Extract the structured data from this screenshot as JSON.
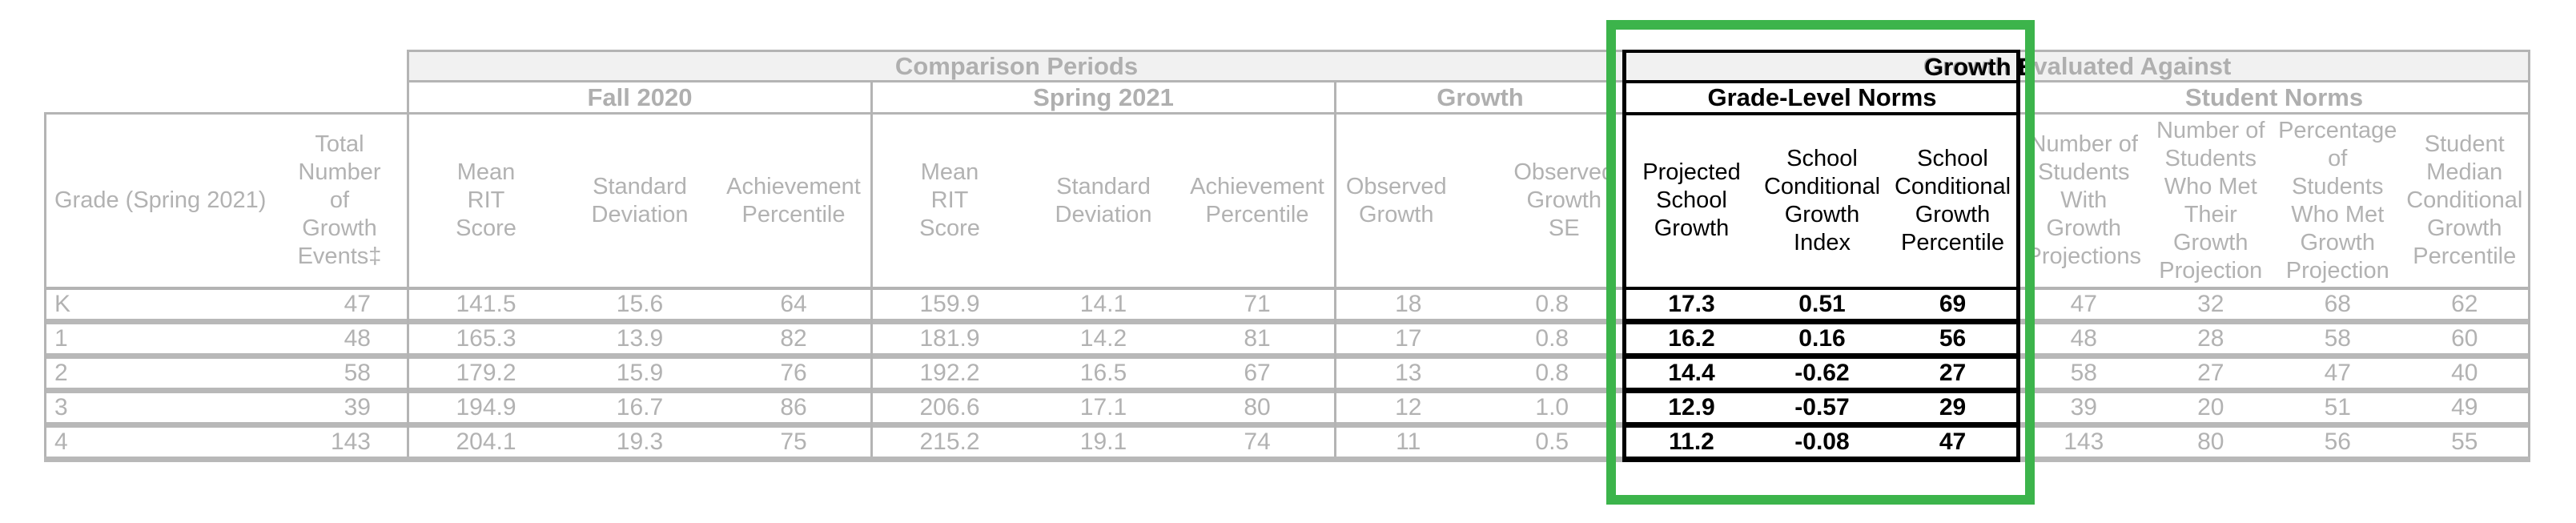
{
  "highlight": {
    "box_color": "#3cb44b"
  },
  "table": {
    "group_headers": {
      "comparison_periods": "Comparison Periods",
      "growth_evaluated_against": "Growth Evaluated Against"
    },
    "subgroups": {
      "fall_2020": "Fall 2020",
      "spring_2021": "Spring 2021",
      "growth": "Growth",
      "grade_level_norms": "Grade-Level Norms",
      "student_norms": "Student Norms"
    },
    "column_headers": [
      "Grade (Spring 2021)",
      "Total\nNumber\nof\nGrowth\nEvents‡",
      "Mean\nRIT\nScore",
      "Standard\nDeviation",
      "Achievement\nPercentile",
      "Mean\nRIT\nScore",
      "Standard\nDeviation",
      "Achievement\nPercentile",
      "Observed\nGrowth",
      "Observed\nGrowth\nSE",
      "Projected\nSchool\nGrowth",
      "School\nConditional\nGrowth\nIndex",
      "School\nConditional\nGrowth\nPercentile",
      "Number of\nStudents\nWith\nGrowth\nProjections",
      "Number of\nStudents\nWho Met\nTheir\nGrowth\nProjection",
      "Percentage\nof\nStudents\nWho Met\nGrowth\nProjection",
      "Student\nMedian\nConditional\nGrowth\nPercentile"
    ],
    "rows": [
      [
        "K",
        "47",
        "141.5",
        "15.6",
        "64",
        "159.9",
        "14.1",
        "71",
        "18",
        "0.8",
        "17.3",
        "0.51",
        "69",
        "47",
        "32",
        "68",
        "62"
      ],
      [
        "1",
        "48",
        "165.3",
        "13.9",
        "82",
        "181.9",
        "14.2",
        "81",
        "17",
        "0.8",
        "16.2",
        "0.16",
        "56",
        "48",
        "28",
        "58",
        "60"
      ],
      [
        "2",
        "58",
        "179.2",
        "15.9",
        "76",
        "192.2",
        "16.5",
        "67",
        "13",
        "0.8",
        "14.4",
        "-0.62",
        "27",
        "58",
        "27",
        "47",
        "40"
      ],
      [
        "3",
        "39",
        "194.9",
        "16.7",
        "86",
        "206.6",
        "17.1",
        "80",
        "12",
        "1.0",
        "12.9",
        "-0.57",
        "29",
        "39",
        "20",
        "51",
        "49"
      ],
      [
        "4",
        "143",
        "204.1",
        "19.3",
        "75",
        "215.2",
        "19.1",
        "74",
        "11",
        "0.5",
        "11.2",
        "-0.08",
        "47",
        "143",
        "80",
        "56",
        "55"
      ]
    ]
  }
}
